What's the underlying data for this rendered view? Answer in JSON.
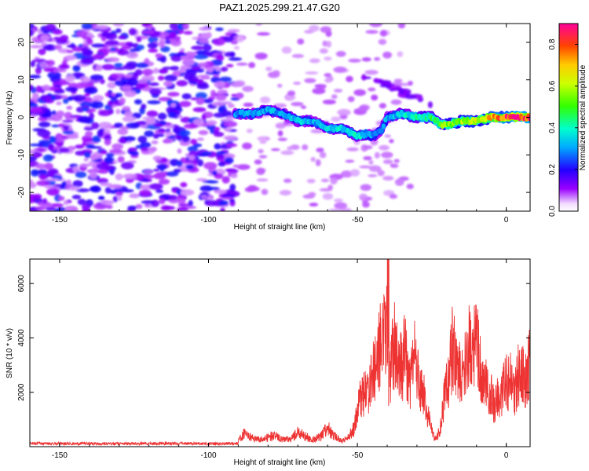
{
  "title": "PAZ1.2025.299.21.47.G20",
  "chart_data": [
    {
      "type": "heatmap",
      "xlabel": "Height of straight line (km)",
      "ylabel": "Frequency (Hz)",
      "xlim": [
        -160,
        8
      ],
      "ylim": [
        -25,
        25
      ],
      "xticks": [
        -150,
        -100,
        -50,
        0
      ],
      "yticks": [
        -20,
        -10,
        0,
        10,
        20
      ],
      "colorbar": {
        "label": "Normalized spectral amplitude",
        "range": [
          0,
          0.9
        ],
        "ticks": [
          "0.0",
          "0.2",
          "0.4",
          "0.6",
          "0.8"
        ]
      },
      "trace": {
        "x": [
          -91,
          -85,
          -80,
          -75,
          -70,
          -65,
          -60,
          -55,
          -50,
          -47,
          -45,
          -42,
          -40,
          -35,
          -30,
          -25,
          -22,
          -20,
          -15,
          -10,
          -5,
          0,
          5,
          8
        ],
        "y": [
          1,
          1,
          2,
          1,
          -1,
          -1,
          -3,
          -3,
          -5,
          -4.5,
          -5,
          -3.5,
          0,
          1,
          0,
          0,
          -2,
          -2,
          -1,
          -1,
          0,
          0,
          0,
          0
        ],
        "amplitude": [
          0.3,
          0.3,
          0.32,
          0.28,
          0.35,
          0.3,
          0.35,
          0.35,
          0.38,
          0.34,
          0.3,
          0.3,
          0.3,
          0.35,
          0.4,
          0.45,
          0.52,
          0.55,
          0.55,
          0.62,
          0.7,
          0.82,
          0.86,
          0.85
        ]
      }
    },
    {
      "type": "line",
      "xlabel": "Height of straight line (km)",
      "ylabel": "SNR (10 * v/v)",
      "xlim": [
        -160,
        8
      ],
      "ylim": [
        0,
        6900
      ],
      "xticks": [
        -150,
        -100,
        -50,
        0
      ],
      "yticks": [
        2000,
        4000,
        6000
      ],
      "color": "#ee3333",
      "series": [
        {
          "name": "SNR",
          "x": [
            -160,
            -150,
            -140,
            -130,
            -120,
            -110,
            -100,
            -95,
            -90,
            -88,
            -85,
            -82,
            -80,
            -78,
            -75,
            -72,
            -70,
            -68,
            -65,
            -62,
            -60,
            -58,
            -55,
            -53,
            -51,
            -50,
            -48,
            -46,
            -44,
            -43,
            -42,
            -41,
            -40,
            -39.5,
            -39,
            -38,
            -37,
            -36,
            -35,
            -34,
            -33,
            -32,
            -31,
            -30,
            -29,
            -28,
            -27,
            -26,
            -25,
            -24,
            -23,
            -22,
            -21,
            -20,
            -19,
            -18,
            -17,
            -16,
            -15,
            -14,
            -13,
            -12,
            -11,
            -10,
            -9,
            -8,
            -7,
            -6,
            -5,
            -4,
            -3,
            -2,
            -1,
            0,
            1,
            2,
            3,
            4,
            5,
            6,
            7,
            8
          ],
          "y": [
            150,
            120,
            140,
            130,
            110,
            120,
            120,
            140,
            200,
            500,
            300,
            250,
            350,
            400,
            250,
            300,
            550,
            400,
            250,
            400,
            700,
            400,
            200,
            350,
            700,
            1500,
            1900,
            2200,
            2900,
            3500,
            3800,
            4000,
            4600,
            6900,
            2500,
            3600,
            4000,
            3200,
            2800,
            3700,
            2300,
            2500,
            3500,
            2800,
            2000,
            2100,
            1500,
            1000,
            600,
            300,
            400,
            800,
            1700,
            2200,
            2800,
            3700,
            3100,
            2800,
            2500,
            3500,
            3300,
            4000,
            3400,
            4400,
            3100,
            2200,
            2500,
            2000,
            1900,
            1400,
            1800,
            1600,
            2100,
            2500,
            2300,
            2500,
            2000,
            2600,
            2900,
            2400,
            2500,
            3500
          ]
        }
      ]
    }
  ]
}
